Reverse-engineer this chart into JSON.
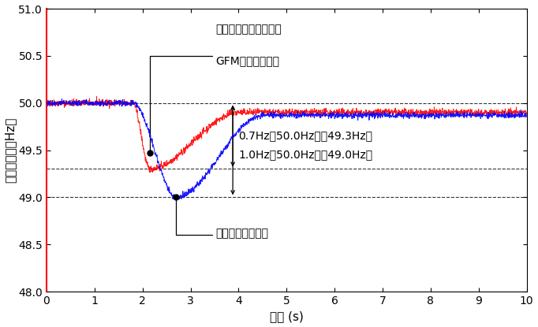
{
  "xlabel": "時間 (s)",
  "ylabel": "系統周波数（Hz）",
  "xlim": [
    0,
    10
  ],
  "ylim": [
    48,
    51
  ],
  "yticks": [
    48,
    48.5,
    49,
    49.5,
    50,
    50.5,
    51
  ],
  "xticks": [
    0,
    1,
    2,
    3,
    4,
    5,
    6,
    7,
    8,
    9,
    10
  ],
  "gfm_color": "#FF0000",
  "conv_color": "#0000FF",
  "annotation_gfm_line1": "太陽光発電に搭載した",
  "annotation_gfm_line2": "GFMインバーター",
  "annotation_conv": "従来インバーター",
  "annotation_07hz": "0.7Hz（50.0Hzかぉ49.3Hz）",
  "annotation_10hz": "1.0Hz（50.0Hzかぉ49.0Hz）",
  "background_color": "#ffffff",
  "font_size_labels": 11,
  "font_size_ticks": 10,
  "font_size_annotations": 10
}
